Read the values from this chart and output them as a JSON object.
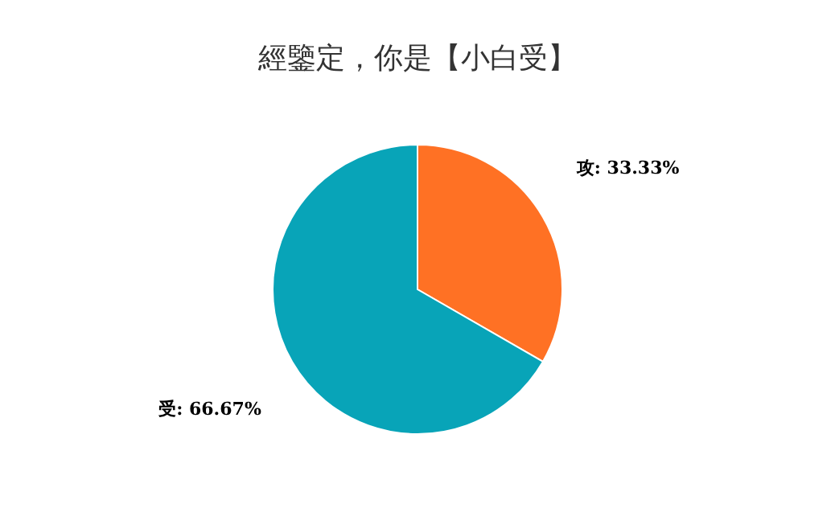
{
  "chart_data": {
    "type": "pie",
    "title": "經鑒定，你是【小白受】",
    "categories": [
      "攻",
      "受"
    ],
    "values": [
      33.33,
      66.67
    ],
    "value_labels": [
      ": 33.33%",
      ": 66.67%"
    ],
    "colors": [
      "#ff7124",
      "#08a4b8"
    ],
    "legend": false
  }
}
